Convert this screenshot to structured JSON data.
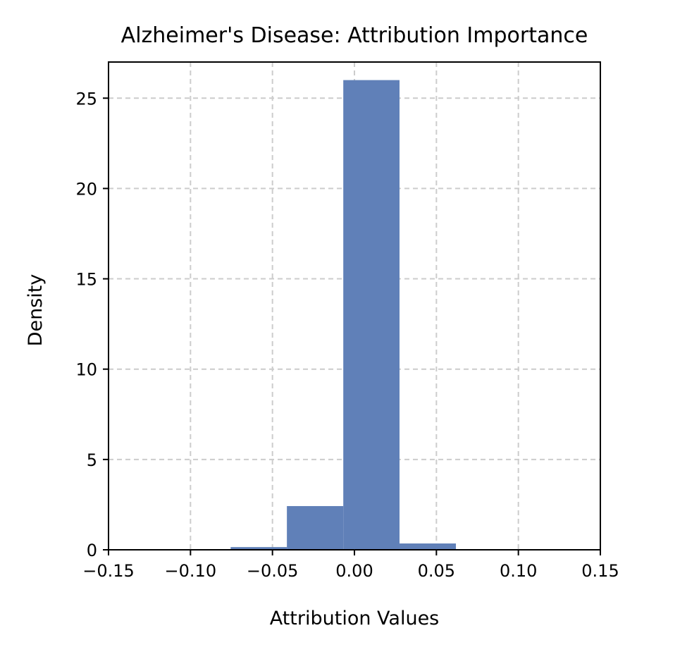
{
  "chart_data": {
    "type": "histogram",
    "title": "Alzheimer's Disease: Attribution Importance",
    "xlabel": "Attribution Values",
    "ylabel": "Density",
    "xlim": [
      -0.15,
      0.15
    ],
    "ylim": [
      0,
      27
    ],
    "xticks": [
      -0.15,
      -0.1,
      -0.05,
      0.0,
      0.05,
      0.1,
      0.15
    ],
    "xtick_labels": [
      "−0.15",
      "−0.10",
      "−0.05",
      "0.00",
      "0.05",
      "0.10",
      "0.15"
    ],
    "yticks": [
      0,
      5,
      10,
      15,
      20,
      25
    ],
    "ytick_labels": [
      "0",
      "5",
      "10",
      "15",
      "20",
      "25"
    ],
    "grid": true,
    "bins": [
      {
        "start": -0.0755,
        "end": -0.0412,
        "value": 0.15
      },
      {
        "start": -0.0412,
        "end": -0.0068,
        "value": 2.42
      },
      {
        "start": -0.0068,
        "end": 0.0275,
        "value": 26.0
      },
      {
        "start": 0.0275,
        "end": 0.0619,
        "value": 0.35
      }
    ],
    "colors": {
      "bar": "#6080b8",
      "grid": "#cccccc",
      "axis": "#000000"
    }
  }
}
